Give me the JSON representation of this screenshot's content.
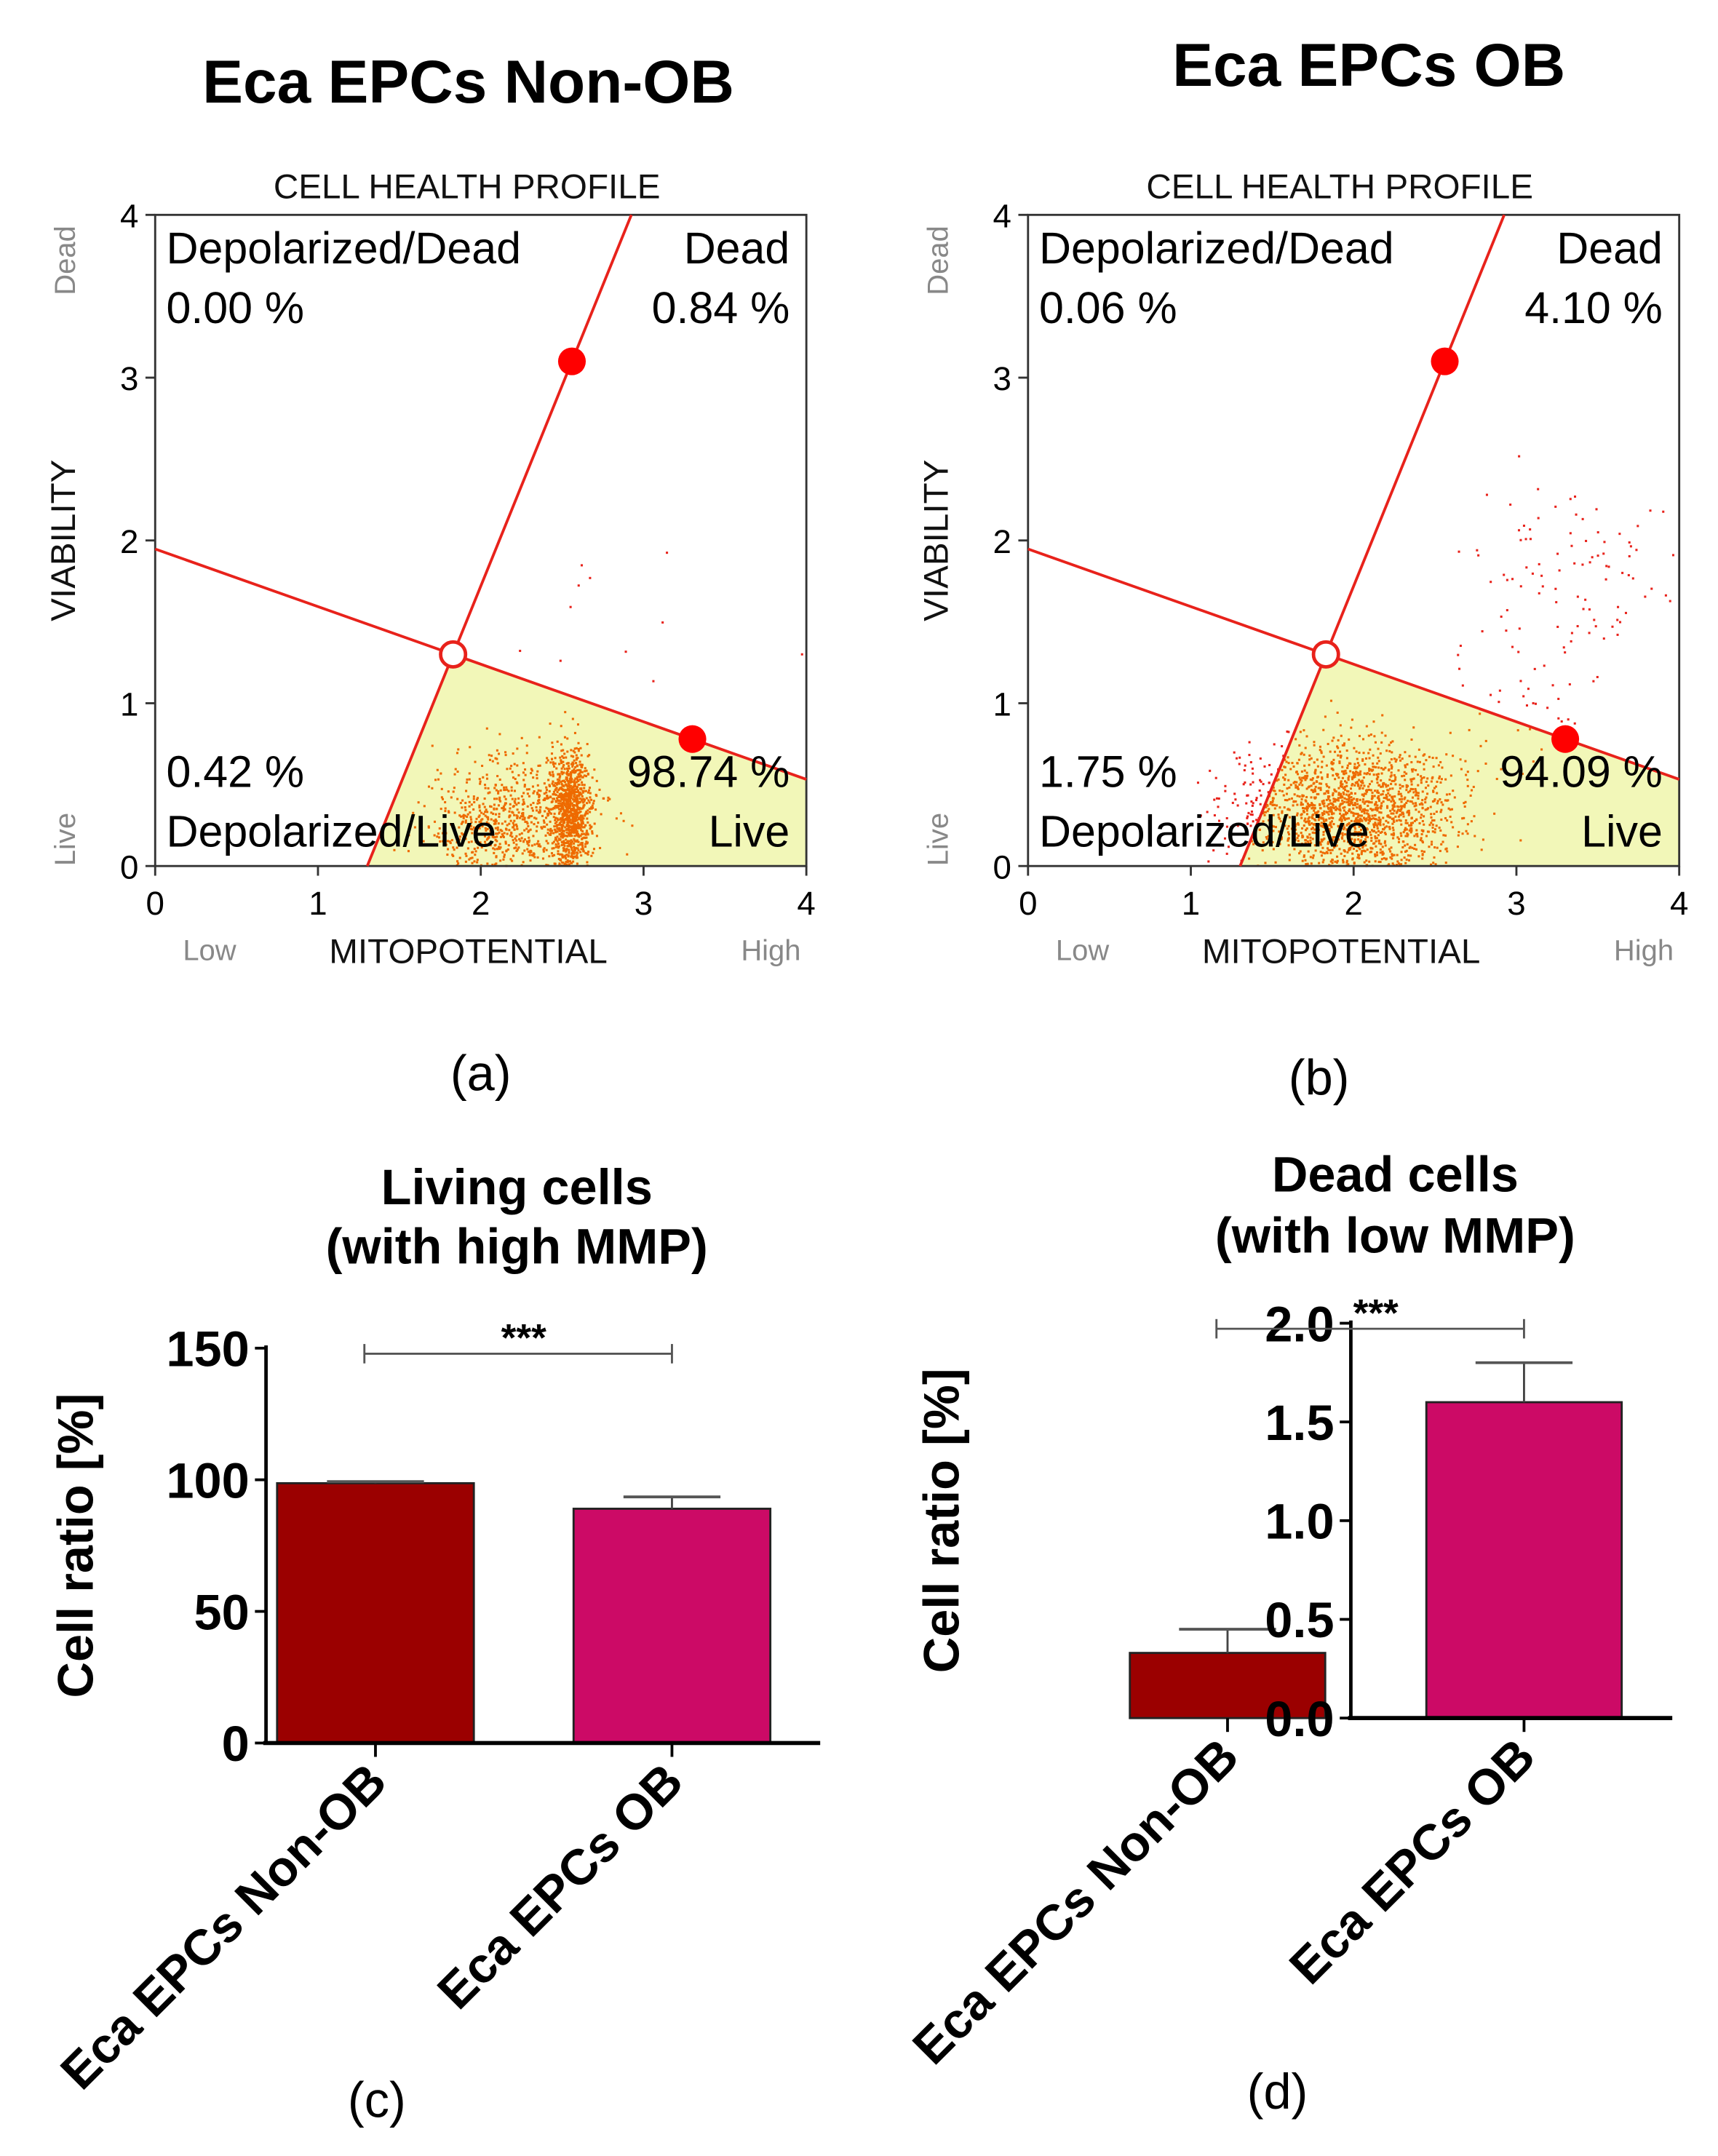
{
  "chart_data": [
    {
      "type": "scatter",
      "panel": "(a)",
      "title": "Eca EPCs Non-OB",
      "subtitle": "CELL HEALTH PROFILE",
      "xlabel": "MITOPOTENTIAL",
      "x_low": "Low",
      "x_high": "High",
      "ylabel": "VIABILITY",
      "y_low": "Live",
      "y_high": "Dead",
      "xlim": [
        0,
        4
      ],
      "ylim": [
        0,
        4
      ],
      "xticks": [
        "0",
        "1",
        "2",
        "3",
        "4"
      ],
      "yticks": [
        "0",
        "1",
        "2",
        "3",
        "4"
      ],
      "quadrants": {
        "top_left": {
          "label": "Depolarized/Dead",
          "value": "0.00 %"
        },
        "top_right": {
          "label": "Dead",
          "value": "0.84 %"
        },
        "bottom_left": {
          "label": "Depolarized/Live",
          "value": "0.42 %"
        },
        "bottom_right": {
          "label": "Live",
          "value": "98.74 %"
        }
      },
      "gate_center": [
        1.83,
        1.3
      ],
      "gate_handles": [
        [
          2.56,
          3.1
        ],
        [
          3.3,
          0.78
        ]
      ],
      "populations": [
        {
          "cx": 2.55,
          "cy": 0.35,
          "sx": 0.06,
          "sy": 0.18,
          "n": 900
        },
        {
          "cx": 2.2,
          "cy": 0.3,
          "sx": 0.25,
          "sy": 0.18,
          "n": 700
        },
        {
          "cx": 2.8,
          "cy": 1.6,
          "sx": 0.4,
          "sy": 0.3,
          "n": 12
        }
      ]
    },
    {
      "type": "scatter",
      "panel": "(b)",
      "title": "Eca EPCs OB",
      "subtitle": "CELL HEALTH PROFILE",
      "xlabel": "MITOPOTENTIAL",
      "x_low": "Low",
      "x_high": "High",
      "ylabel": "VIABILITY",
      "y_low": "Live",
      "y_high": "Dead",
      "xlim": [
        0,
        4
      ],
      "ylim": [
        0,
        4
      ],
      "xticks": [
        "0",
        "1",
        "2",
        "3",
        "4"
      ],
      "yticks": [
        "0",
        "1",
        "2",
        "3",
        "4"
      ],
      "quadrants": {
        "top_left": {
          "label": "Depolarized/Dead",
          "value": "0.06 %"
        },
        "top_right": {
          "label": "Dead",
          "value": "4.10 %"
        },
        "bottom_left": {
          "label": "Depolarized/Live",
          "value": "1.75 %"
        },
        "bottom_right": {
          "label": "Live",
          "value": "94.09 %"
        }
      },
      "gate_center": [
        1.83,
        1.3
      ],
      "gate_handles": [
        [
          2.56,
          3.1
        ],
        [
          3.3,
          0.78
        ]
      ],
      "populations": [
        {
          "cx": 2.0,
          "cy": 0.35,
          "sx": 0.3,
          "sy": 0.2,
          "n": 1600
        },
        {
          "cx": 1.35,
          "cy": 0.35,
          "sx": 0.15,
          "sy": 0.15,
          "n": 40
        },
        {
          "cx": 3.4,
          "cy": 1.8,
          "sx": 0.35,
          "sy": 0.3,
          "n": 90
        },
        {
          "cx": 3.0,
          "cy": 1.0,
          "sx": 0.25,
          "sy": 0.25,
          "n": 40
        }
      ]
    },
    {
      "type": "bar",
      "panel": "(c)",
      "title": [
        "Living cells",
        "(with high MMP)"
      ],
      "ylabel": "Cell ratio [%]",
      "categories": [
        "Eca EPCs Non-OB",
        "Eca EPCs OB"
      ],
      "values": [
        98.7,
        89.0
      ],
      "errors": [
        0.6,
        4.5
      ],
      "colors": [
        "#9b0000",
        "#cc0a66"
      ],
      "ylim": [
        0,
        150
      ],
      "yticks": [
        "0",
        "50",
        "100",
        "150"
      ],
      "significance": "***"
    },
    {
      "type": "bar",
      "panel": "(d)",
      "title": [
        "Dead cells",
        "(with low MMP)"
      ],
      "ylabel": "Cell ratio [%]",
      "categories": [
        "Eca EPCs Non-OB",
        "Eca EPCs OB"
      ],
      "values": [
        0.33,
        1.6
      ],
      "errors": [
        0.12,
        0.2
      ],
      "colors": [
        "#9b0000",
        "#cc0a66"
      ],
      "ylim": [
        0,
        2.0
      ],
      "yticks": [
        "0.0",
        "0.5",
        "1.0",
        "1.5",
        "2.0"
      ],
      "significance": "***"
    }
  ]
}
